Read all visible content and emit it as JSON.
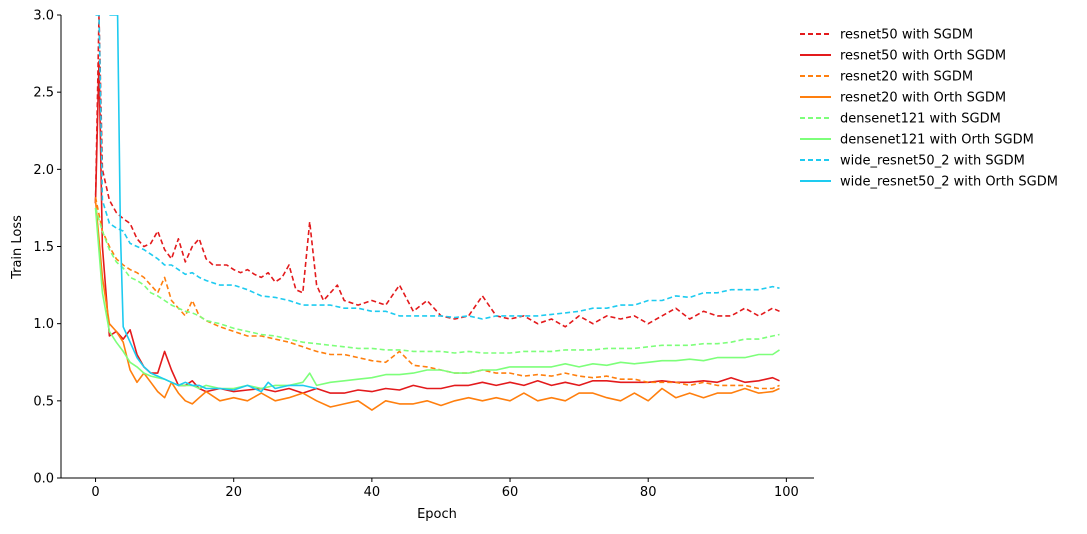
{
  "chart_data": {
    "type": "line",
    "title": "",
    "xlabel": "Epoch",
    "ylabel": "Train Loss",
    "xlim": [
      -5,
      104
    ],
    "ylim": [
      0.0,
      3.0
    ],
    "xticks": [
      0,
      20,
      40,
      60,
      80,
      100
    ],
    "yticks": [
      0.0,
      0.5,
      1.0,
      1.5,
      2.0,
      2.5,
      3.0
    ],
    "xtick_labels": [
      "0",
      "20",
      "40",
      "60",
      "80",
      "100"
    ],
    "ytick_labels": [
      "0.0",
      "0.5",
      "1.0",
      "1.5",
      "2.0",
      "2.5",
      "3.0"
    ],
    "grid": false,
    "legend_position": "outside-right-top",
    "series": [
      {
        "name": "resnet50 with SGDM",
        "color": "#e31a1c",
        "dash": true,
        "x": [
          0,
          0.5,
          1,
          2,
          3,
          4,
          5,
          6,
          7,
          8,
          9,
          10,
          11,
          12,
          13,
          14,
          15,
          16,
          17,
          18,
          19,
          20,
          21,
          22,
          23,
          24,
          25,
          26,
          27,
          28,
          29,
          30,
          31,
          32,
          33,
          34,
          35,
          36,
          38,
          40,
          42,
          44,
          46,
          48,
          50,
          52,
          54,
          56,
          58,
          60,
          62,
          64,
          66,
          68,
          70,
          72,
          74,
          76,
          78,
          80,
          82,
          84,
          86,
          88,
          90,
          92,
          94,
          96,
          98,
          99
        ],
        "y": [
          1.78,
          3.0,
          2.0,
          1.8,
          1.72,
          1.68,
          1.65,
          1.55,
          1.5,
          1.52,
          1.6,
          1.48,
          1.42,
          1.55,
          1.4,
          1.5,
          1.55,
          1.42,
          1.38,
          1.38,
          1.38,
          1.35,
          1.33,
          1.35,
          1.32,
          1.3,
          1.33,
          1.27,
          1.3,
          1.38,
          1.22,
          1.2,
          1.66,
          1.25,
          1.15,
          1.2,
          1.25,
          1.15,
          1.12,
          1.15,
          1.12,
          1.25,
          1.08,
          1.15,
          1.05,
          1.03,
          1.05,
          1.18,
          1.05,
          1.03,
          1.05,
          1.0,
          1.03,
          0.98,
          1.05,
          1.0,
          1.05,
          1.03,
          1.05,
          1.0,
          1.05,
          1.1,
          1.03,
          1.08,
          1.05,
          1.05,
          1.1,
          1.05,
          1.1,
          1.08
        ]
      },
      {
        "name": "resnet50 with Orth SGDM",
        "color": "#e31a1c",
        "dash": false,
        "x": [
          0,
          0.5,
          1,
          2,
          3,
          4,
          5,
          6,
          7,
          8,
          9,
          10,
          11,
          12,
          13,
          14,
          15,
          16,
          18,
          20,
          22,
          24,
          26,
          28,
          30,
          32,
          34,
          36,
          38,
          40,
          42,
          44,
          46,
          48,
          50,
          52,
          54,
          56,
          58,
          60,
          62,
          64,
          66,
          68,
          70,
          72,
          74,
          76,
          78,
          80,
          82,
          84,
          86,
          88,
          90,
          92,
          94,
          96,
          98,
          99
        ],
        "y": [
          1.78,
          2.7,
          1.5,
          0.92,
          0.95,
          0.9,
          0.96,
          0.8,
          0.72,
          0.68,
          0.68,
          0.82,
          0.7,
          0.6,
          0.6,
          0.63,
          0.58,
          0.56,
          0.58,
          0.56,
          0.57,
          0.58,
          0.56,
          0.58,
          0.55,
          0.58,
          0.55,
          0.55,
          0.57,
          0.56,
          0.58,
          0.57,
          0.6,
          0.58,
          0.58,
          0.6,
          0.6,
          0.62,
          0.6,
          0.62,
          0.6,
          0.63,
          0.6,
          0.62,
          0.6,
          0.63,
          0.63,
          0.62,
          0.62,
          0.62,
          0.63,
          0.62,
          0.62,
          0.63,
          0.62,
          0.65,
          0.62,
          0.63,
          0.65,
          0.63
        ]
      },
      {
        "name": "resnet20 with SGDM",
        "color": "#ff7f0e",
        "dash": true,
        "x": [
          0,
          1,
          2,
          3,
          4,
          5,
          6,
          7,
          8,
          9,
          10,
          11,
          12,
          13,
          14,
          15,
          16,
          18,
          20,
          22,
          24,
          26,
          28,
          30,
          32,
          34,
          36,
          38,
          40,
          42,
          44,
          46,
          48,
          50,
          52,
          54,
          56,
          58,
          60,
          62,
          64,
          66,
          68,
          70,
          72,
          74,
          76,
          78,
          80,
          82,
          84,
          86,
          88,
          90,
          92,
          94,
          96,
          98,
          99
        ],
        "y": [
          1.82,
          1.6,
          1.5,
          1.42,
          1.38,
          1.35,
          1.33,
          1.3,
          1.25,
          1.2,
          1.3,
          1.15,
          1.1,
          1.05,
          1.15,
          1.05,
          1.02,
          0.98,
          0.95,
          0.92,
          0.92,
          0.9,
          0.88,
          0.85,
          0.82,
          0.8,
          0.8,
          0.78,
          0.76,
          0.75,
          0.82,
          0.73,
          0.72,
          0.7,
          0.68,
          0.68,
          0.7,
          0.68,
          0.68,
          0.66,
          0.67,
          0.66,
          0.68,
          0.66,
          0.65,
          0.66,
          0.64,
          0.64,
          0.62,
          0.62,
          0.62,
          0.6,
          0.62,
          0.6,
          0.6,
          0.6,
          0.58,
          0.58,
          0.6
        ]
      },
      {
        "name": "resnet20 with Orth SGDM",
        "color": "#ff7f0e",
        "dash": false,
        "x": [
          0,
          1,
          2,
          3,
          4,
          5,
          6,
          7,
          8,
          9,
          10,
          11,
          12,
          13,
          14,
          15,
          16,
          18,
          20,
          22,
          24,
          26,
          28,
          30,
          32,
          34,
          36,
          38,
          40,
          42,
          44,
          46,
          48,
          50,
          52,
          54,
          56,
          58,
          60,
          62,
          64,
          66,
          68,
          70,
          72,
          74,
          76,
          78,
          80,
          82,
          84,
          86,
          88,
          90,
          92,
          94,
          96,
          98,
          99
        ],
        "y": [
          1.8,
          1.3,
          1.0,
          0.95,
          0.88,
          0.7,
          0.62,
          0.68,
          0.62,
          0.56,
          0.52,
          0.62,
          0.55,
          0.5,
          0.48,
          0.52,
          0.56,
          0.5,
          0.52,
          0.5,
          0.55,
          0.5,
          0.52,
          0.55,
          0.5,
          0.46,
          0.48,
          0.5,
          0.44,
          0.5,
          0.48,
          0.48,
          0.5,
          0.47,
          0.5,
          0.52,
          0.5,
          0.52,
          0.5,
          0.55,
          0.5,
          0.52,
          0.5,
          0.55,
          0.55,
          0.52,
          0.5,
          0.55,
          0.5,
          0.58,
          0.52,
          0.55,
          0.52,
          0.55,
          0.55,
          0.58,
          0.55,
          0.56,
          0.58
        ]
      },
      {
        "name": "densenet121 with SGDM",
        "color": "#7dff7a",
        "dash": true,
        "x": [
          0,
          1,
          2,
          3,
          4,
          5,
          6,
          7,
          8,
          9,
          10,
          11,
          12,
          13,
          14,
          15,
          16,
          18,
          20,
          22,
          24,
          26,
          28,
          30,
          32,
          34,
          36,
          38,
          40,
          42,
          44,
          46,
          48,
          50,
          52,
          54,
          56,
          58,
          60,
          62,
          64,
          66,
          68,
          70,
          72,
          74,
          76,
          78,
          80,
          82,
          84,
          86,
          88,
          90,
          92,
          94,
          96,
          98,
          99
        ],
        "y": [
          1.75,
          1.6,
          1.48,
          1.4,
          1.36,
          1.3,
          1.28,
          1.25,
          1.2,
          1.18,
          1.15,
          1.12,
          1.1,
          1.08,
          1.07,
          1.05,
          1.02,
          1.0,
          0.97,
          0.95,
          0.93,
          0.92,
          0.9,
          0.88,
          0.87,
          0.86,
          0.85,
          0.84,
          0.84,
          0.83,
          0.83,
          0.82,
          0.82,
          0.82,
          0.81,
          0.82,
          0.81,
          0.81,
          0.81,
          0.82,
          0.82,
          0.82,
          0.83,
          0.83,
          0.83,
          0.84,
          0.84,
          0.84,
          0.85,
          0.86,
          0.86,
          0.86,
          0.87,
          0.87,
          0.88,
          0.9,
          0.9,
          0.92,
          0.93
        ]
      },
      {
        "name": "densenet121 with Orth SGDM",
        "color": "#7dff7a",
        "dash": false,
        "x": [
          0,
          1,
          2,
          3,
          4,
          5,
          6,
          7,
          8,
          9,
          10,
          11,
          12,
          13,
          14,
          15,
          16,
          18,
          20,
          22,
          24,
          26,
          28,
          30,
          31,
          32,
          34,
          36,
          38,
          40,
          42,
          44,
          46,
          48,
          50,
          52,
          54,
          56,
          58,
          60,
          62,
          64,
          66,
          68,
          70,
          72,
          74,
          76,
          78,
          80,
          82,
          84,
          86,
          88,
          90,
          92,
          94,
          96,
          98,
          99
        ],
        "y": [
          1.75,
          1.2,
          0.95,
          0.88,
          0.82,
          0.75,
          0.72,
          0.68,
          0.66,
          0.65,
          0.64,
          0.62,
          0.6,
          0.6,
          0.6,
          0.58,
          0.6,
          0.58,
          0.58,
          0.6,
          0.58,
          0.6,
          0.6,
          0.62,
          0.68,
          0.6,
          0.62,
          0.63,
          0.64,
          0.65,
          0.67,
          0.67,
          0.68,
          0.7,
          0.7,
          0.68,
          0.68,
          0.7,
          0.7,
          0.72,
          0.72,
          0.72,
          0.72,
          0.74,
          0.72,
          0.74,
          0.73,
          0.75,
          0.74,
          0.75,
          0.76,
          0.76,
          0.77,
          0.76,
          0.78,
          0.78,
          0.78,
          0.8,
          0.8,
          0.83
        ]
      },
      {
        "name": "wide_resnet50_2 with SGDM",
        "color": "#1ecbf0",
        "dash": true,
        "x": [
          0,
          0.5,
          1,
          2,
          3,
          4,
          5,
          6,
          7,
          8,
          9,
          10,
          11,
          12,
          13,
          14,
          15,
          16,
          18,
          20,
          22,
          24,
          26,
          28,
          30,
          32,
          34,
          36,
          38,
          40,
          42,
          44,
          46,
          48,
          50,
          52,
          54,
          56,
          58,
          60,
          62,
          64,
          66,
          68,
          70,
          72,
          74,
          76,
          78,
          80,
          82,
          84,
          86,
          88,
          90,
          92,
          94,
          96,
          98,
          99
        ],
        "y": [
          3.0,
          3.0,
          1.8,
          1.65,
          1.62,
          1.6,
          1.52,
          1.5,
          1.48,
          1.45,
          1.42,
          1.38,
          1.38,
          1.35,
          1.32,
          1.33,
          1.3,
          1.28,
          1.25,
          1.25,
          1.22,
          1.18,
          1.17,
          1.15,
          1.12,
          1.12,
          1.12,
          1.1,
          1.1,
          1.08,
          1.08,
          1.05,
          1.05,
          1.05,
          1.05,
          1.04,
          1.05,
          1.03,
          1.05,
          1.05,
          1.05,
          1.05,
          1.06,
          1.07,
          1.08,
          1.1,
          1.1,
          1.12,
          1.12,
          1.15,
          1.15,
          1.18,
          1.17,
          1.2,
          1.2,
          1.22,
          1.22,
          1.22,
          1.24,
          1.23
        ]
      },
      {
        "name": "wide_resnet50_2 with Orth SGDM",
        "color": "#1ecbf0",
        "dash": false,
        "x": [
          2,
          2.7,
          3.2,
          3.6,
          4,
          5,
          6,
          7,
          8,
          9,
          10,
          11,
          12,
          13,
          14,
          15,
          16,
          18,
          20,
          22,
          24,
          25,
          26,
          28,
          30,
          32
        ],
        "y": [
          3.0,
          3.0,
          3.0,
          1.6,
          0.98,
          0.88,
          0.78,
          0.72,
          0.68,
          0.66,
          0.64,
          0.62,
          0.6,
          0.62,
          0.6,
          0.6,
          0.58,
          0.58,
          0.57,
          0.6,
          0.56,
          0.62,
          0.58,
          0.6,
          0.6,
          0.58
        ]
      }
    ]
  }
}
